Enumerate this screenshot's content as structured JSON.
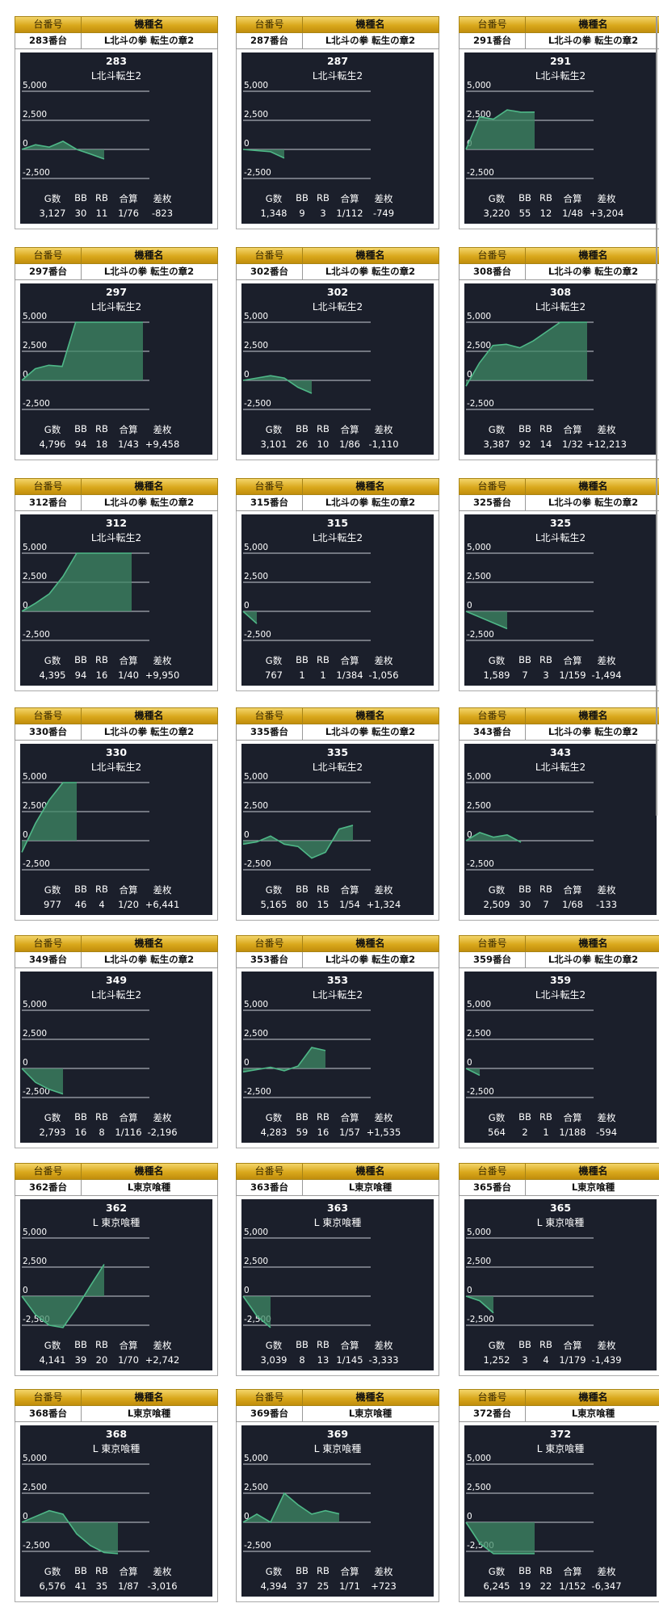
{
  "header": {
    "num_label": "台番号",
    "name_label": "機種名"
  },
  "graph_axis": {
    "labels": [
      "5,000",
      "2,500",
      "0",
      "-2,500"
    ],
    "values": [
      5000,
      2500,
      0,
      -2500
    ]
  },
  "stat_labels": [
    "G数",
    "BB",
    "RB",
    "合算",
    "差枚"
  ],
  "colors": {
    "graph_bg": "#1b1f2b",
    "line": "#4fb888",
    "fill": "#3f8a66",
    "grid": "#c8ccd4",
    "header_gold": "#d9a81c"
  },
  "cards": [
    {
      "unit": "283番台",
      "machine": "L北斗の拳 転生の章2",
      "num": "283",
      "graph_name": "L北斗転生2",
      "games": "3,127",
      "bb": "30",
      "rb": "11",
      "ratio": "1/76",
      "diff": "-823",
      "chart_data": {
        "type": "area",
        "y": [
          0,
          400,
          200,
          700,
          0,
          -400,
          -823
        ]
      }
    },
    {
      "unit": "287番台",
      "machine": "L北斗の拳 転生の章2",
      "num": "287",
      "graph_name": "L北斗転生2",
      "games": "1,348",
      "bb": "9",
      "rb": "3",
      "ratio": "1/112",
      "diff": "-749",
      "chart_data": {
        "type": "area",
        "y": [
          0,
          -100,
          -200,
          -749
        ]
      }
    },
    {
      "unit": "291番台",
      "machine": "L北斗の拳 転生の章2",
      "num": "291",
      "graph_name": "L北斗転生2",
      "games": "3,220",
      "bb": "55",
      "rb": "12",
      "ratio": "1/48",
      "diff": "+3,204",
      "chart_data": {
        "type": "area",
        "y": [
          0,
          2800,
          2600,
          3400,
          3200,
          3204
        ]
      }
    },
    {
      "unit": "297番台",
      "machine": "L北斗の拳 転生の章2",
      "num": "297",
      "graph_name": "L北斗転生2",
      "games": "4,796",
      "bb": "94",
      "rb": "18",
      "ratio": "1/43",
      "diff": "+9,458",
      "chart_data": {
        "type": "area",
        "y": [
          0,
          1000,
          1300,
          1200,
          5000,
          5000,
          5000,
          5000,
          5000,
          5000
        ]
      }
    },
    {
      "unit": "302番台",
      "machine": "L北斗の拳 転生の章2",
      "num": "302",
      "graph_name": "L北斗転生2",
      "games": "3,101",
      "bb": "26",
      "rb": "10",
      "ratio": "1/86",
      "diff": "-1,110",
      "chart_data": {
        "type": "area",
        "y": [
          0,
          200,
          400,
          200,
          -600,
          -1110
        ]
      }
    },
    {
      "unit": "308番台",
      "machine": "L北斗の拳 転生の章2",
      "num": "308",
      "graph_name": "L北斗転生2",
      "games": "3,387",
      "bb": "92",
      "rb": "14",
      "ratio": "1/32",
      "diff": "+12,213",
      "chart_data": {
        "type": "area",
        "y": [
          -500,
          1500,
          3000,
          3100,
          2800,
          3400,
          4200,
          5000,
          5000,
          5000
        ]
      }
    },
    {
      "unit": "312番台",
      "machine": "L北斗の拳 転生の章2",
      "num": "312",
      "graph_name": "L北斗転生2",
      "games": "4,395",
      "bb": "94",
      "rb": "16",
      "ratio": "1/40",
      "diff": "+9,950",
      "chart_data": {
        "type": "area",
        "y": [
          0,
          700,
          1500,
          3000,
          5000,
          5000,
          5000,
          5000,
          5000
        ]
      }
    },
    {
      "unit": "315番台",
      "machine": "L北斗の拳 転生の章2",
      "num": "315",
      "graph_name": "L北斗転生2",
      "games": "767",
      "bb": "1",
      "rb": "1",
      "ratio": "1/384",
      "diff": "-1,056",
      "chart_data": {
        "type": "area",
        "y": [
          0,
          -1056
        ]
      }
    },
    {
      "unit": "325番台",
      "machine": "L北斗の拳 転生の章2",
      "num": "325",
      "graph_name": "L北斗転生2",
      "games": "1,589",
      "bb": "7",
      "rb": "3",
      "ratio": "1/159",
      "diff": "-1,494",
      "chart_data": {
        "type": "area",
        "y": [
          0,
          -500,
          -1000,
          -1494
        ]
      }
    },
    {
      "unit": "330番台",
      "machine": "L北斗の拳 転生の章2",
      "num": "330",
      "graph_name": "L北斗転生2",
      "games": "977",
      "bb": "46",
      "rb": "4",
      "ratio": "1/20",
      "diff": "+6,441",
      "chart_data": {
        "type": "area",
        "y": [
          -1000,
          1500,
          3500,
          5000,
          5000
        ]
      }
    },
    {
      "unit": "335番台",
      "machine": "L北斗の拳 転生の章2",
      "num": "335",
      "graph_name": "L北斗転生2",
      "games": "5,165",
      "bb": "80",
      "rb": "15",
      "ratio": "1/54",
      "diff": "+1,324",
      "chart_data": {
        "type": "area",
        "y": [
          -300,
          -100,
          400,
          -300,
          -500,
          -1500,
          -1000,
          1000,
          1324
        ]
      }
    },
    {
      "unit": "343番台",
      "machine": "L北斗の拳 転生の章2",
      "num": "343",
      "graph_name": "L北斗転生2",
      "games": "2,509",
      "bb": "30",
      "rb": "7",
      "ratio": "1/68",
      "diff": "-133",
      "chart_data": {
        "type": "area",
        "y": [
          0,
          700,
          300,
          500,
          -133
        ]
      }
    },
    {
      "unit": "349番台",
      "machine": "L北斗の拳 転生の章2",
      "num": "349",
      "graph_name": "L北斗転生2",
      "games": "2,793",
      "bb": "16",
      "rb": "8",
      "ratio": "1/116",
      "diff": "-2,196",
      "chart_data": {
        "type": "area",
        "y": [
          0,
          -1200,
          -1800,
          -2196
        ]
      }
    },
    {
      "unit": "353番台",
      "machine": "L北斗の拳 転生の章2",
      "num": "353",
      "graph_name": "L北斗転生2",
      "games": "4,283",
      "bb": "59",
      "rb": "16",
      "ratio": "1/57",
      "diff": "+1,535",
      "chart_data": {
        "type": "area",
        "y": [
          -300,
          -100,
          100,
          -200,
          200,
          1800,
          1535
        ]
      }
    },
    {
      "unit": "359番台",
      "machine": "L北斗の拳 転生の章2",
      "num": "359",
      "graph_name": "L北斗転生2",
      "games": "564",
      "bb": "2",
      "rb": "1",
      "ratio": "1/188",
      "diff": "-594",
      "chart_data": {
        "type": "area",
        "y": [
          0,
          -594
        ]
      }
    },
    {
      "unit": "362番台",
      "machine": "L東京喰種",
      "num": "362",
      "graph_name": "L 東京喰種",
      "games": "4,141",
      "bb": "39",
      "rb": "20",
      "ratio": "1/70",
      "diff": "+2,742",
      "chart_data": {
        "type": "area",
        "y": [
          0,
          -1600,
          -2500,
          -2700,
          -1000,
          900,
          2742
        ]
      }
    },
    {
      "unit": "363番台",
      "machine": "L東京喰種",
      "num": "363",
      "graph_name": "L 東京喰種",
      "games": "3,039",
      "bb": "8",
      "rb": "13",
      "ratio": "1/145",
      "diff": "-3,333",
      "chart_data": {
        "type": "area",
        "y": [
          0,
          -1700,
          -3333
        ]
      }
    },
    {
      "unit": "365番台",
      "machine": "L東京喰種",
      "num": "365",
      "graph_name": "L 東京喰種",
      "games": "1,252",
      "bb": "3",
      "rb": "4",
      "ratio": "1/179",
      "diff": "-1,439",
      "chart_data": {
        "type": "area",
        "y": [
          0,
          -400,
          -1439
        ]
      }
    },
    {
      "unit": "368番台",
      "machine": "L東京喰種",
      "num": "368",
      "graph_name": "L 東京喰種",
      "games": "6,576",
      "bb": "41",
      "rb": "35",
      "ratio": "1/87",
      "diff": "-3,016",
      "chart_data": {
        "type": "area",
        "y": [
          0,
          500,
          1000,
          700,
          -1000,
          -2000,
          -2600,
          -3016
        ]
      }
    },
    {
      "unit": "369番台",
      "machine": "L東京喰種",
      "num": "369",
      "graph_name": "L 東京喰種",
      "games": "4,394",
      "bb": "37",
      "rb": "25",
      "ratio": "1/71",
      "diff": "+723",
      "chart_data": {
        "type": "area",
        "y": [
          0,
          700,
          0,
          2500,
          1500,
          700,
          1000,
          723
        ]
      }
    },
    {
      "unit": "372番台",
      "machine": "L東京喰種",
      "num": "372",
      "graph_name": "L 東京喰種",
      "games": "6,245",
      "bb": "19",
      "rb": "22",
      "ratio": "1/152",
      "diff": "-6,347",
      "chart_data": {
        "type": "area",
        "y": [
          0,
          -1800,
          -3000,
          -3000,
          -3000,
          -3000
        ]
      }
    }
  ]
}
